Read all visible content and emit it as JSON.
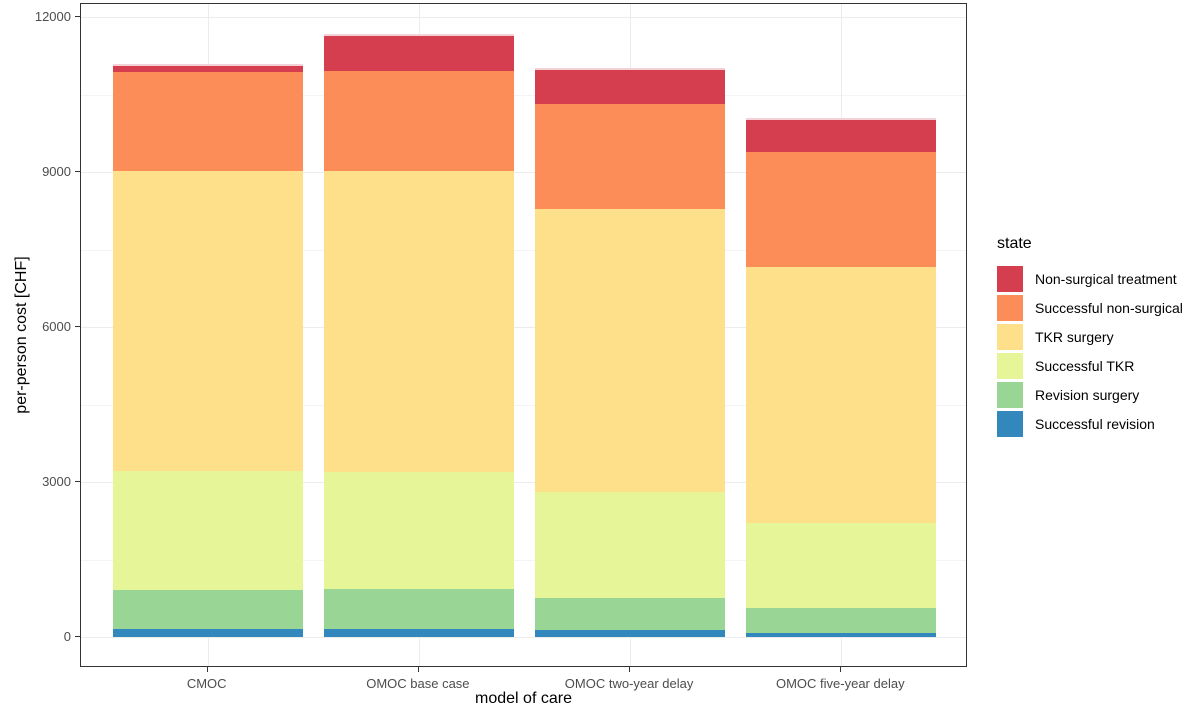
{
  "chart_data": {
    "type": "bar",
    "stacked": true,
    "xlabel": "model of care",
    "ylabel": "per-person cost [CHF]",
    "categories": [
      "CMOC",
      "OMOC base case",
      "OMOC two-year delay",
      "OMOC five-year delay"
    ],
    "series": [
      {
        "name": "Successful revision",
        "color": "#3288BD",
        "values": [
          150,
          150,
          130,
          80
        ]
      },
      {
        "name": "Revision surgery",
        "color": "#99D594",
        "values": [
          770,
          780,
          630,
          490
        ]
      },
      {
        "name": "Successful TKR",
        "color": "#E6F598",
        "values": [
          2290,
          2270,
          2040,
          1630
        ]
      },
      {
        "name": "TKR surgery",
        "color": "#FEE08B",
        "values": [
          5820,
          5830,
          5490,
          4960
        ]
      },
      {
        "name": "Successful non-surgical",
        "color": "#FC8D59",
        "values": [
          1920,
          1930,
          2040,
          2230
        ]
      },
      {
        "name": "Non-surgical treatment",
        "color": "#D53E4F",
        "values": [
          150,
          710,
          690,
          670
        ]
      }
    ],
    "stack_totals": [
      11100,
      11670,
      11020,
      10060
    ],
    "y_ticks": [
      0,
      3000,
      6000,
      9000,
      12000
    ],
    "y_minor_ticks": [
      1500,
      4500,
      7500,
      10500
    ],
    "ylim_display": [
      -600,
      12260
    ],
    "grid": true,
    "legend": {
      "title": "state",
      "position": "right",
      "order": [
        "Non-surgical treatment",
        "Successful non-surgical",
        "TKR surgery",
        "Successful TKR",
        "Revision surgery",
        "Successful revision"
      ]
    }
  }
}
